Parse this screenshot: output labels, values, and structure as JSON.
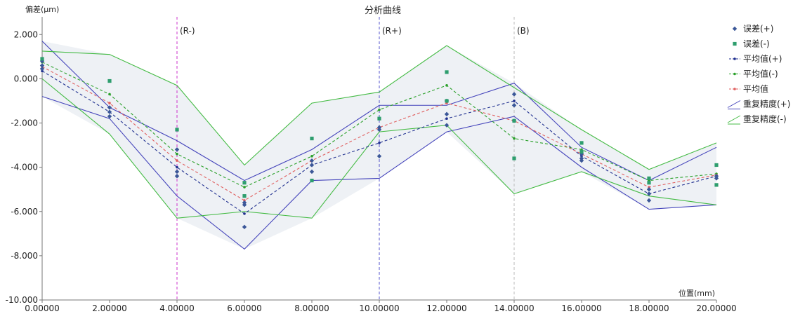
{
  "chart_data": {
    "type": "line",
    "title": "分析曲线",
    "ylabel": "偏差(μm)",
    "xlabel": "位置(mm)",
    "x": [
      0,
      2,
      4,
      6,
      8,
      10,
      12,
      14,
      16,
      18,
      20
    ],
    "xlim": [
      0,
      20
    ],
    "ylim": [
      -10,
      2.8
    ],
    "x_ticks": [
      "0.00000",
      "2.00000",
      "4.00000",
      "6.00000",
      "8.00000",
      "10.00000",
      "12.00000",
      "14.00000",
      "16.00000",
      "18.00000",
      "20.00000"
    ],
    "x_tick_values": [
      0,
      2,
      4,
      6,
      8,
      10,
      12,
      14,
      16,
      18,
      20
    ],
    "y_ticks": [
      "2.000",
      "0.000",
      "-2.000",
      "-4.000",
      "-6.000",
      "-8.000",
      "-10.000"
    ],
    "y_tick_values": [
      2,
      0,
      -2,
      -4,
      -6,
      -8,
      -10
    ],
    "grid": false,
    "legend_position": "right",
    "markers": [
      {
        "label": "(R-)",
        "x": 4,
        "color": "#cc33cc"
      },
      {
        "label": "(R+)",
        "x": 10,
        "color": "#5555cc"
      },
      {
        "label": "(B)",
        "x": 14,
        "color": "#bbbbbb"
      }
    ],
    "points": [
      {
        "name": "误差(+)",
        "color": "#3b5798",
        "marker": "diamond",
        "data": [
          [
            0,
            0.8
          ],
          [
            0,
            0.6
          ],
          [
            0,
            0.45
          ],
          [
            2,
            -1.3
          ],
          [
            2,
            -1.5
          ],
          [
            2,
            -1.7
          ],
          [
            4,
            -3.2
          ],
          [
            4,
            -4.2
          ],
          [
            4,
            -4.4
          ],
          [
            6,
            -5.7
          ],
          [
            6,
            -5.6
          ],
          [
            6,
            -6.7
          ],
          [
            8,
            -3.7
          ],
          [
            8,
            -3.9
          ],
          [
            8,
            -4.2
          ],
          [
            10,
            -2.2
          ],
          [
            10,
            -2.3
          ],
          [
            10,
            -3.5
          ],
          [
            12,
            -1.0
          ],
          [
            12,
            -1.6
          ],
          [
            12,
            -2.1
          ],
          [
            14,
            -0.7
          ],
          [
            14,
            -1.2
          ],
          [
            14,
            -1.9
          ],
          [
            16,
            -3.4
          ],
          [
            16,
            -3.6
          ],
          [
            16,
            -3.7
          ],
          [
            18,
            -5.0
          ],
          [
            18,
            -5.2
          ],
          [
            18,
            -5.5
          ],
          [
            20,
            -4.4
          ],
          [
            20,
            -4.5
          ]
        ]
      },
      {
        "name": "误差(-)",
        "color": "#2e9e6e",
        "marker": "square",
        "data": [
          [
            0,
            0.9
          ],
          [
            2,
            -0.1
          ],
          [
            4,
            -2.3
          ],
          [
            6,
            -4.7
          ],
          [
            6,
            -5.3
          ],
          [
            8,
            -2.7
          ],
          [
            8,
            -4.6
          ],
          [
            10,
            -1.8
          ],
          [
            12,
            0.3
          ],
          [
            12,
            -1.0
          ],
          [
            14,
            -1.9
          ],
          [
            14,
            -3.6
          ],
          [
            16,
            -2.9
          ],
          [
            16,
            -3.3
          ],
          [
            18,
            -4.5
          ],
          [
            18,
            -4.7
          ],
          [
            20,
            -3.9
          ],
          [
            20,
            -4.8
          ]
        ]
      }
    ],
    "series": [
      {
        "name": "平均值(+)",
        "color": "#1f2f8f",
        "dash": true,
        "values": [
          0.35,
          -1.5,
          -4.0,
          -6.1,
          -3.9,
          -2.9,
          -1.8,
          -1.0,
          -3.5,
          -5.2,
          -4.4
        ]
      },
      {
        "name": "平均值(-)",
        "color": "#2aa02a",
        "dash": true,
        "values": [
          0.75,
          -0.7,
          -3.4,
          -4.9,
          -3.5,
          -1.4,
          -0.3,
          -2.7,
          -3.2,
          -4.6,
          -4.3
        ]
      },
      {
        "name": "平均值",
        "color": "#e06060",
        "dash": true,
        "values": [
          0.55,
          -1.1,
          -3.7,
          -5.5,
          -3.7,
          -2.2,
          -1.1,
          -1.9,
          -3.4,
          -4.9,
          -4.35
        ]
      },
      {
        "name": "重复精度(+)",
        "color": "#4444bb",
        "dash": false,
        "upper": [
          1.7,
          -1.3,
          -2.8,
          -4.6,
          -3.2,
          -1.2,
          -1.2,
          -0.2,
          -3.1,
          -4.6,
          -3.1
        ],
        "lower": [
          -0.8,
          -1.8,
          -5.3,
          -7.7,
          -4.6,
          -4.5,
          -2.4,
          -1.7,
          -4.0,
          -5.9,
          -5.7
        ]
      },
      {
        "name": "重复精度(-)",
        "color": "#44bb44",
        "dash": false,
        "upper": [
          1.25,
          1.1,
          -0.3,
          -3.9,
          -1.1,
          -0.6,
          1.5,
          -0.4,
          -2.3,
          -4.1,
          -2.9
        ],
        "lower": [
          0.0,
          -2.5,
          -6.3,
          -6.0,
          -6.3,
          -2.4,
          -2.1,
          -5.2,
          -4.2,
          -5.3,
          -5.7
        ]
      }
    ],
    "legend": [
      {
        "label": "误差(+)",
        "kind": "marker",
        "color": "#3b5798",
        "marker": "diamond"
      },
      {
        "label": "误差(-)",
        "kind": "marker",
        "color": "#2e9e6e",
        "marker": "square"
      },
      {
        "label": "平均值(+)",
        "kind": "dashline",
        "color": "#1f2f8f"
      },
      {
        "label": "平均值(-)",
        "kind": "dashline",
        "color": "#2aa02a"
      },
      {
        "label": "平均值",
        "kind": "dashline",
        "color": "#e06060"
      },
      {
        "label": "重复精度(+)",
        "kind": "band",
        "color": "#4444bb"
      },
      {
        "label": "重复精度(-)",
        "kind": "band",
        "color": "#44bb44"
      }
    ]
  }
}
